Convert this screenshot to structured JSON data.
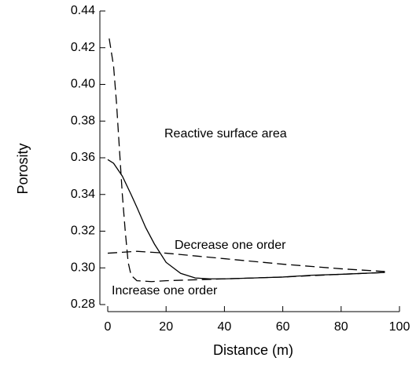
{
  "chart_data": {
    "type": "line",
    "x_label": "Distance (m)",
    "y_label": "Porosity",
    "annotations": [
      "Reactive surface area",
      "Decrease one order",
      "Increase one order"
    ],
    "series": [
      {
        "color": "#000000",
        "dashed": false,
        "x": [
          0,
          2,
          5,
          8,
          10,
          13,
          16,
          20,
          25,
          30,
          35,
          40,
          50,
          60,
          70,
          80,
          95
        ],
        "values": [
          0.359,
          0.357,
          0.35,
          0.34,
          0.333,
          0.322,
          0.313,
          0.303,
          0.297,
          0.2945,
          0.294,
          0.294,
          0.2945,
          0.295,
          0.296,
          0.2965,
          0.2975
        ]
      },
      {
        "color": "#000000",
        "dashed": true,
        "x": [
          0.5,
          2,
          3,
          5,
          6,
          7,
          8,
          10,
          15,
          20,
          30,
          40,
          60,
          80,
          95
        ],
        "values": [
          0.425,
          0.41,
          0.39,
          0.34,
          0.32,
          0.303,
          0.296,
          0.293,
          0.2925,
          0.293,
          0.2935,
          0.294,
          0.295,
          0.2965,
          0.2975
        ]
      },
      {
        "color": "#000000",
        "dashed": true,
        "x": [
          0,
          5,
          10,
          20,
          30,
          40,
          60,
          80,
          95
        ],
        "values": [
          0.308,
          0.3085,
          0.309,
          0.308,
          0.3065,
          0.305,
          0.302,
          0.2995,
          0.298
        ]
      }
    ],
    "xlim": [
      0,
      100
    ],
    "xticks": [
      0,
      20,
      40,
      60,
      80,
      100
    ],
    "ylim": [
      0.28,
      0.44
    ],
    "yticks": [
      {
        "value": 0.28,
        "label": "0.28"
      },
      {
        "value": 0.3,
        "label": "0.30"
      },
      {
        "value": 0.32,
        "label": "0.32"
      },
      {
        "value": 0.34,
        "label": "0.34"
      },
      {
        "value": 0.36,
        "label": "0.36"
      },
      {
        "value": 0.38,
        "label": "0.38"
      },
      {
        "value": 0.4,
        "label": "0.40"
      },
      {
        "value": 0.42,
        "label": "0.42"
      },
      {
        "value": 0.44,
        "label": "0.44"
      }
    ]
  }
}
